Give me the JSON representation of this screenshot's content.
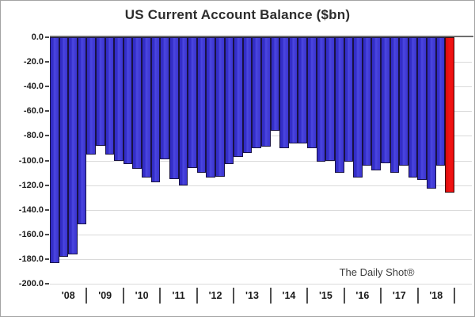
{
  "title": "US Current Account Balance ($bn)",
  "watermark": "The Daily Shot®",
  "chart_data": {
    "type": "bar",
    "title": "US Current Account Balance ($bn)",
    "ylabel": "",
    "xlabel": "",
    "ylim": [
      -200,
      0
    ],
    "ytick_step": 20,
    "ytick_labels": [
      "0.0",
      "-20.0",
      "-40.0",
      "-60.0",
      "-80.0",
      "-100.0",
      "-120.0",
      "-140.0",
      "-160.0",
      "-180.0",
      "-200.0"
    ],
    "x_year_labels": [
      "'08",
      "'09",
      "'10",
      "'11",
      "'12",
      "'13",
      "'14",
      "'15",
      "'16",
      "'17",
      "'18"
    ],
    "quarters_per_year": 4,
    "frequency": "quarterly",
    "values": [
      -183,
      -178,
      -176,
      -152,
      -95,
      -88,
      -95,
      -100,
      -103,
      -107,
      -114,
      -118,
      -99,
      -115,
      -120,
      -106,
      -110,
      -114,
      -113,
      -103,
      -97,
      -94,
      -90,
      -89,
      -76,
      -90,
      -86,
      -86,
      -90,
      -101,
      -100,
      -110,
      -101,
      -114,
      -104,
      -108,
      -102,
      -110,
      -104,
      -114,
      -116,
      -123,
      -104,
      -126
    ],
    "highlight_last_bar": true,
    "grid": true,
    "legend": "none",
    "colors": {
      "bar_fill": "#3b35d5",
      "bar_border": "#191345",
      "highlight_fill": "#ee1010",
      "highlight_border": "#380808",
      "gridline": "#dadada",
      "zero_line": "#6e6e6e",
      "text": "#1b1b1b"
    }
  }
}
